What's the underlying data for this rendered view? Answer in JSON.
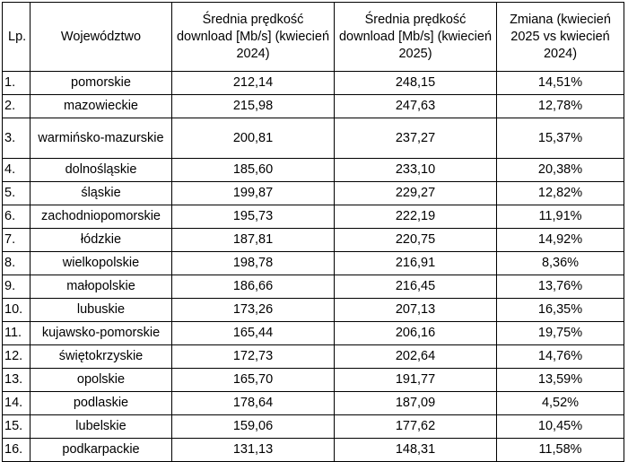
{
  "headers": {
    "lp": "Lp.",
    "wojewodztwo": "Województwo",
    "speed_2024": "Średnia prędkość download [Mb/s] (kwiecień 2024)",
    "speed_2025": "Średnia prędkość download [Mb/s] (kwiecień 2025)",
    "change": "Zmiana (kwiecień 2025 vs kwiecień 2024)"
  },
  "rows": [
    {
      "lp": "1.",
      "name": "pomorskie",
      "v2024": "212,14",
      "v2025": "248,15",
      "change": "14,51%"
    },
    {
      "lp": "2.",
      "name": "mazowieckie",
      "v2024": "215,98",
      "v2025": "247,63",
      "change": "12,78%"
    },
    {
      "lp": "3.",
      "name": "warmińsko-mazurskie",
      "v2024": "200,81",
      "v2025": "237,27",
      "change": "15,37%"
    },
    {
      "lp": "4.",
      "name": "dolnośląskie",
      "v2024": "185,60",
      "v2025": "233,10",
      "change": "20,38%"
    },
    {
      "lp": "5.",
      "name": "śląskie",
      "v2024": "199,87",
      "v2025": "229,27",
      "change": "12,82%"
    },
    {
      "lp": "6.",
      "name": "zachodniopomorskie",
      "v2024": "195,73",
      "v2025": "222,19",
      "change": "11,91%"
    },
    {
      "lp": "7.",
      "name": "łódzkie",
      "v2024": "187,81",
      "v2025": "220,75",
      "change": "14,92%"
    },
    {
      "lp": "8.",
      "name": "wielkopolskie",
      "v2024": "198,78",
      "v2025": "216,91",
      "change": "8,36%"
    },
    {
      "lp": "9.",
      "name": "małopolskie",
      "v2024": "186,66",
      "v2025": "216,45",
      "change": "13,76%"
    },
    {
      "lp": "10.",
      "name": "lubuskie",
      "v2024": "173,26",
      "v2025": "207,13",
      "change": "16,35%"
    },
    {
      "lp": "11.",
      "name": "kujawsko-pomorskie",
      "v2024": "165,44",
      "v2025": "206,16",
      "change": "19,75%"
    },
    {
      "lp": "12.",
      "name": "świętokrzyskie",
      "v2024": "172,73",
      "v2025": "202,64",
      "change": "14,76%"
    },
    {
      "lp": "13.",
      "name": "opolskie",
      "v2024": "165,70",
      "v2025": "191,77",
      "change": "13,59%"
    },
    {
      "lp": "14.",
      "name": "podlaskie",
      "v2024": "178,64",
      "v2025": "187,09",
      "change": "4,52%"
    },
    {
      "lp": "15.",
      "name": "lubelskie",
      "v2024": "159,06",
      "v2025": "177,62",
      "change": "10,45%"
    },
    {
      "lp": "16.",
      "name": "podkarpackie",
      "v2024": "131,13",
      "v2025": "148,31",
      "change": "11,58%"
    }
  ]
}
